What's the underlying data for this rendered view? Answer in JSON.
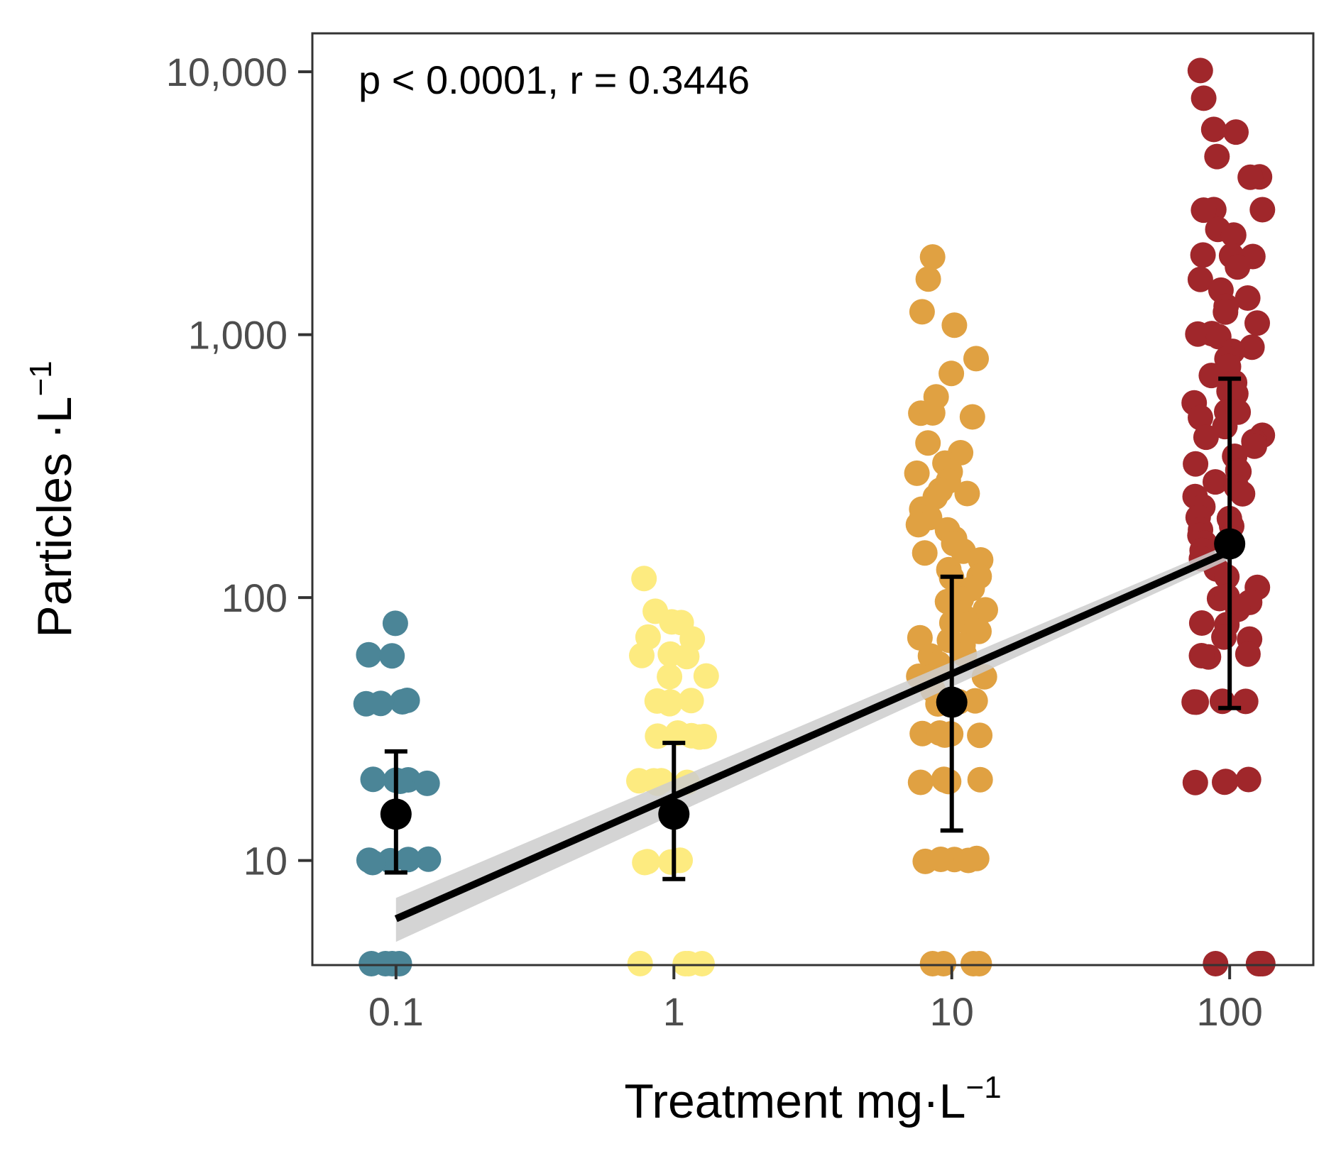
{
  "chart_data": {
    "type": "scatter",
    "title": "",
    "annotation": "p < 0.0001, r = 0.3446",
    "xlabel": {
      "text": "Treatment mg·L",
      "sup": "−1"
    },
    "ylabel": {
      "text": "Particles ·L",
      "sup": "−1"
    },
    "x_scale": "log10",
    "y_scale": "log10",
    "xlim": [
      0.05,
      200
    ],
    "ylim": [
      4,
      14000
    ],
    "x_ticks": [
      {
        "value": 0.1,
        "label": "0.1"
      },
      {
        "value": 1,
        "label": "1"
      },
      {
        "value": 10,
        "label": "10"
      },
      {
        "value": 100,
        "label": "100"
      }
    ],
    "y_ticks": [
      {
        "value": 10,
        "label": "10"
      },
      {
        "value": 100,
        "label": "100"
      },
      {
        "value": 1000,
        "label": "1,000"
      },
      {
        "value": 10000,
        "label": "10,000"
      }
    ],
    "grid": false,
    "legend": "none",
    "series": [
      {
        "treatment": 0.1,
        "color": "#4b8597",
        "values": [
          80,
          60,
          60,
          40,
          40,
          40,
          40,
          20,
          20,
          20,
          20,
          20,
          10,
          10,
          10,
          10,
          10,
          4,
          4,
          4,
          4
        ]
      },
      {
        "treatment": 1,
        "color": "#fdeb80",
        "values": [
          120,
          90,
          80,
          80,
          70,
          70,
          60,
          60,
          60,
          50,
          50,
          40,
          40,
          40,
          40,
          30,
          30,
          30,
          30,
          30,
          20,
          20,
          20,
          20,
          20,
          10,
          10,
          10,
          10,
          10,
          4,
          4,
          4,
          4
        ]
      },
      {
        "treatment": 10,
        "color": "#e0a142",
        "values": [
          2000,
          1600,
          1200,
          1100,
          800,
          700,
          580,
          500,
          500,
          480,
          380,
          350,
          320,
          300,
          300,
          280,
          260,
          250,
          240,
          220,
          200,
          200,
          190,
          180,
          170,
          160,
          150,
          150,
          140,
          130,
          120,
          120,
          110,
          100,
          100,
          95,
          90,
          85,
          80,
          80,
          75,
          70,
          70,
          65,
          60,
          60,
          55,
          50,
          50,
          50,
          45,
          40,
          40,
          40,
          40,
          30,
          30,
          30,
          30,
          30,
          20,
          20,
          20,
          20,
          20,
          10,
          10,
          10,
          10,
          10,
          4,
          4,
          4,
          4
        ]
      },
      {
        "treatment": 100,
        "color": "#a0272b",
        "values": [
          10000,
          8000,
          6000,
          6000,
          4700,
          4000,
          4000,
          3000,
          3000,
          3000,
          2500,
          2400,
          2000,
          2000,
          2000,
          1800,
          1600,
          1500,
          1400,
          1300,
          1200,
          1100,
          1000,
          1000,
          1000,
          900,
          850,
          800,
          750,
          700,
          650,
          600,
          600,
          550,
          500,
          500,
          480,
          450,
          420,
          400,
          400,
          380,
          350,
          320,
          300,
          300,
          280,
          260,
          250,
          240,
          220,
          200,
          200,
          190,
          180,
          170,
          160,
          150,
          140,
          130,
          120,
          110,
          100,
          100,
          95,
          90,
          80,
          80,
          70,
          70,
          60,
          60,
          60,
          40,
          40,
          40,
          40,
          20,
          20,
          20,
          20,
          4,
          4,
          4,
          4
        ]
      }
    ],
    "summary": {
      "color": "#000000",
      "points": [
        {
          "x": 0.1,
          "mean": 15,
          "lower": 9,
          "upper": 26
        },
        {
          "x": 1,
          "mean": 15,
          "lower": 8.5,
          "upper": 28
        },
        {
          "x": 10,
          "mean": 40,
          "lower": 13,
          "upper": 120
        },
        {
          "x": 100,
          "mean": 160,
          "lower": 38,
          "upper": 680
        }
      ]
    },
    "trend_line": {
      "color": "#000000",
      "ribbon_color": "#cccccc",
      "x_start": 0.1,
      "y_start": 6,
      "x_end": 100,
      "y_end": 150,
      "ribbon_start": [
        4.9,
        7.2
      ],
      "ribbon_end": [
        140,
        160
      ]
    }
  }
}
